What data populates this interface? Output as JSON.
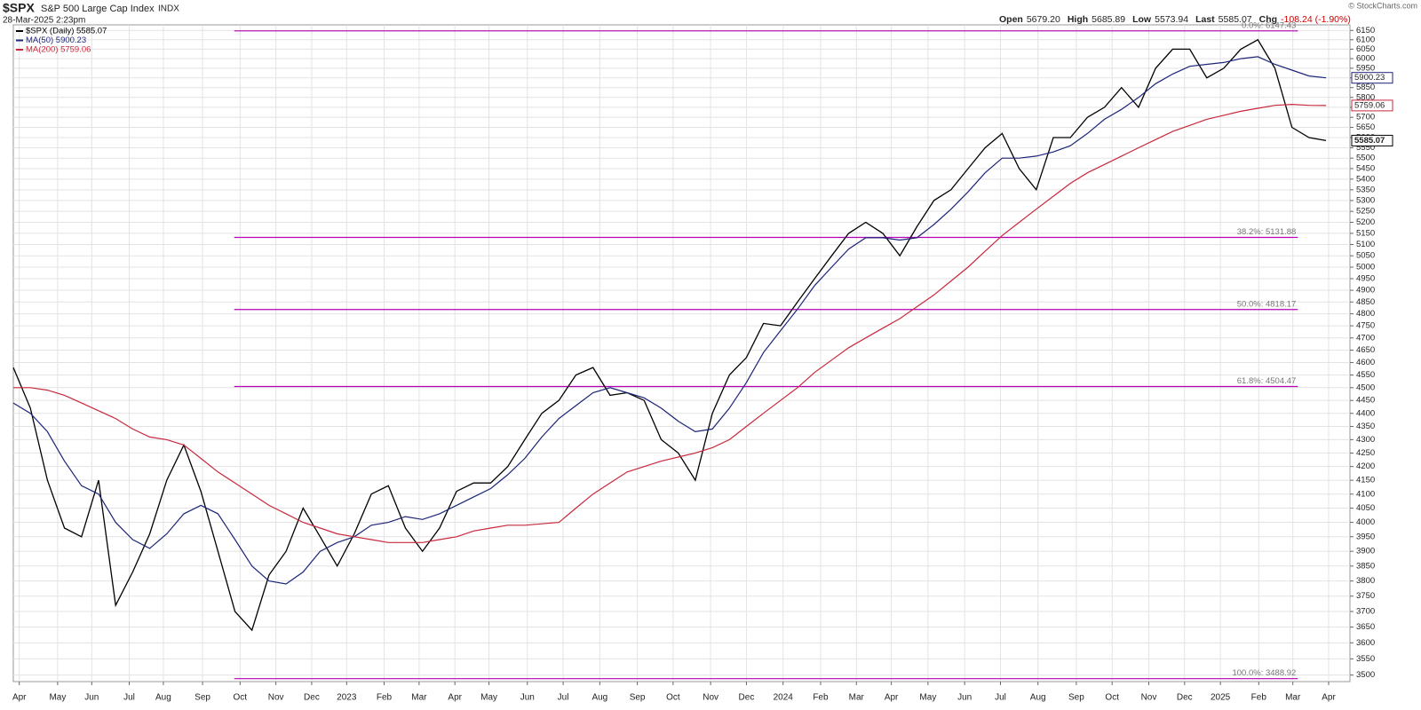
{
  "chart_data": {
    "type": "line",
    "symbol": "$SPX",
    "title": "S&P 500 Large Cap Index",
    "exchange": "INDX",
    "timestamp": "28-Mar-2025 2:23pm",
    "quote": [
      {
        "label": "Open",
        "value": "5679.20"
      },
      {
        "label": "High",
        "value": "5685.89"
      },
      {
        "label": "Low",
        "value": "5573.94"
      },
      {
        "label": "Last",
        "value": "5585.07"
      },
      {
        "label": "Chg",
        "value": "-108.24 (-1.90%)"
      }
    ],
    "credit": "© StockCharts.com",
    "log_scale": true,
    "grid": true,
    "ylim": [
      3480,
      6180
    ],
    "yticks": [
      3500,
      3550,
      3600,
      3650,
      3700,
      3750,
      3800,
      3850,
      3900,
      3950,
      4000,
      4050,
      4100,
      4150,
      4200,
      4250,
      4300,
      4350,
      4400,
      4450,
      4500,
      4550,
      4600,
      4650,
      4700,
      4750,
      4800,
      4850,
      4900,
      4950,
      5000,
      5050,
      5100,
      5150,
      5200,
      5250,
      5300,
      5350,
      5400,
      5450,
      5500,
      5550,
      5600,
      5650,
      5700,
      5750,
      5800,
      5850,
      5900,
      5950,
      6000,
      6050,
      6100,
      6150
    ],
    "xlim": [
      0,
      78.4
    ],
    "xticks": [
      {
        "value": 0.35,
        "label": "Apr"
      },
      {
        "value": 2.6,
        "label": "May"
      },
      {
        "value": 4.6,
        "label": "Jun"
      },
      {
        "value": 6.8,
        "label": "Jul"
      },
      {
        "value": 8.8,
        "label": "Aug"
      },
      {
        "value": 11.1,
        "label": "Sep"
      },
      {
        "value": 13.3,
        "label": "Oct"
      },
      {
        "value": 15.4,
        "label": "Nov"
      },
      {
        "value": 17.5,
        "label": "Dec"
      },
      {
        "value": 19.55,
        "label": "2023"
      },
      {
        "value": 21.75,
        "label": "Feb"
      },
      {
        "value": 23.8,
        "label": "Mar"
      },
      {
        "value": 25.9,
        "label": "Apr"
      },
      {
        "value": 27.9,
        "label": "May"
      },
      {
        "value": 30.15,
        "label": "Jun"
      },
      {
        "value": 32.25,
        "label": "Jul"
      },
      {
        "value": 34.4,
        "label": "Aug"
      },
      {
        "value": 36.6,
        "label": "Sep"
      },
      {
        "value": 38.7,
        "label": "Oct"
      },
      {
        "value": 40.9,
        "label": "Nov"
      },
      {
        "value": 43.0,
        "label": "Dec"
      },
      {
        "value": 45.15,
        "label": "2024"
      },
      {
        "value": 47.35,
        "label": "Feb"
      },
      {
        "value": 49.45,
        "label": "Mar"
      },
      {
        "value": 51.5,
        "label": "Apr"
      },
      {
        "value": 53.65,
        "label": "May"
      },
      {
        "value": 55.8,
        "label": "Jun"
      },
      {
        "value": 57.9,
        "label": "Jul"
      },
      {
        "value": 60.1,
        "label": "Aug"
      },
      {
        "value": 62.35,
        "label": "Sep"
      },
      {
        "value": 64.45,
        "label": "Oct"
      },
      {
        "value": 66.6,
        "label": "Nov"
      },
      {
        "value": 68.7,
        "label": "Dec"
      },
      {
        "value": 70.8,
        "label": "2025"
      },
      {
        "value": 73.05,
        "label": "Feb"
      },
      {
        "value": 75.05,
        "label": "Mar"
      },
      {
        "value": 77.15,
        "label": "Apr"
      }
    ],
    "series": [
      {
        "name": "$SPX (Daily) 5585.07",
        "color": "#000000",
        "values": [
          4580,
          4420,
          4150,
          3980,
          3950,
          4150,
          3720,
          3830,
          3960,
          4150,
          4280,
          4110,
          3900,
          3700,
          3640,
          3820,
          3900,
          4050,
          3950,
          3850,
          3960,
          4100,
          4130,
          3980,
          3900,
          3980,
          4110,
          4140,
          4140,
          4200,
          4300,
          4400,
          4450,
          4550,
          4580,
          4470,
          4480,
          4450,
          4300,
          4250,
          4150,
          4400,
          4550,
          4620,
          4760,
          4750,
          4850,
          4950,
          5050,
          5150,
          5200,
          5150,
          5050,
          5180,
          5300,
          5350,
          5450,
          5550,
          5620,
          5450,
          5350,
          5600,
          5600,
          5700,
          5750,
          5850,
          5750,
          5950,
          6050,
          6050,
          5900,
          5950,
          6050,
          6100,
          5950,
          5650,
          5600,
          5585.07
        ]
      },
      {
        "name": "MA(50) 5900.23",
        "color": "#1c2478",
        "values": [
          4440,
          4400,
          4330,
          4220,
          4130,
          4100,
          4000,
          3940,
          3910,
          3960,
          4030,
          4060,
          4030,
          3940,
          3850,
          3800,
          3790,
          3830,
          3900,
          3930,
          3950,
          3990,
          4000,
          4020,
          4010,
          4030,
          4060,
          4090,
          4120,
          4170,
          4230,
          4310,
          4380,
          4430,
          4480,
          4500,
          4480,
          4460,
          4420,
          4370,
          4330,
          4340,
          4420,
          4520,
          4640,
          4730,
          4820,
          4920,
          5000,
          5080,
          5130,
          5130,
          5120,
          5130,
          5190,
          5260,
          5340,
          5430,
          5500,
          5500,
          5510,
          5530,
          5560,
          5620,
          5690,
          5740,
          5800,
          5870,
          5920,
          5960,
          5970,
          5980,
          6000,
          6010,
          5970,
          5940,
          5910,
          5900.23
        ]
      },
      {
        "name": "MA(200) 5759.06",
        "color": "#c8283c",
        "values": [
          4500,
          4500,
          4490,
          4470,
          4440,
          4410,
          4380,
          4340,
          4310,
          4300,
          4280,
          4230,
          4180,
          4140,
          4100,
          4060,
          4030,
          4000,
          3980,
          3960,
          3950,
          3940,
          3930,
          3930,
          3930,
          3940,
          3950,
          3970,
          3980,
          3990,
          3990,
          3995,
          4000,
          4050,
          4100,
          4140,
          4180,
          4200,
          4220,
          4235,
          4250,
          4270,
          4300,
          4350,
          4400,
          4450,
          4500,
          4560,
          4610,
          4660,
          4700,
          4740,
          4780,
          4830,
          4880,
          4940,
          5000,
          5070,
          5140,
          5200,
          5260,
          5320,
          5380,
          5430,
          5470,
          5510,
          5550,
          5590,
          5630,
          5660,
          5690,
          5710,
          5730,
          5745,
          5760,
          5765,
          5760,
          5759.06
        ]
      }
    ],
    "fib_color": "#b400b4",
    "fib_levels": [
      {
        "label": "0.0%: 6147.43",
        "value": 6147.43
      },
      {
        "label": "38.2%: 5131.88",
        "value": 5131.88
      },
      {
        "label": "50.0%: 4818.17",
        "value": 4818.17
      },
      {
        "label": "61.8%: 4504.47",
        "value": 4504.47
      },
      {
        "label": "100.0%: 3488.92",
        "value": 3488.92
      }
    ]
  }
}
